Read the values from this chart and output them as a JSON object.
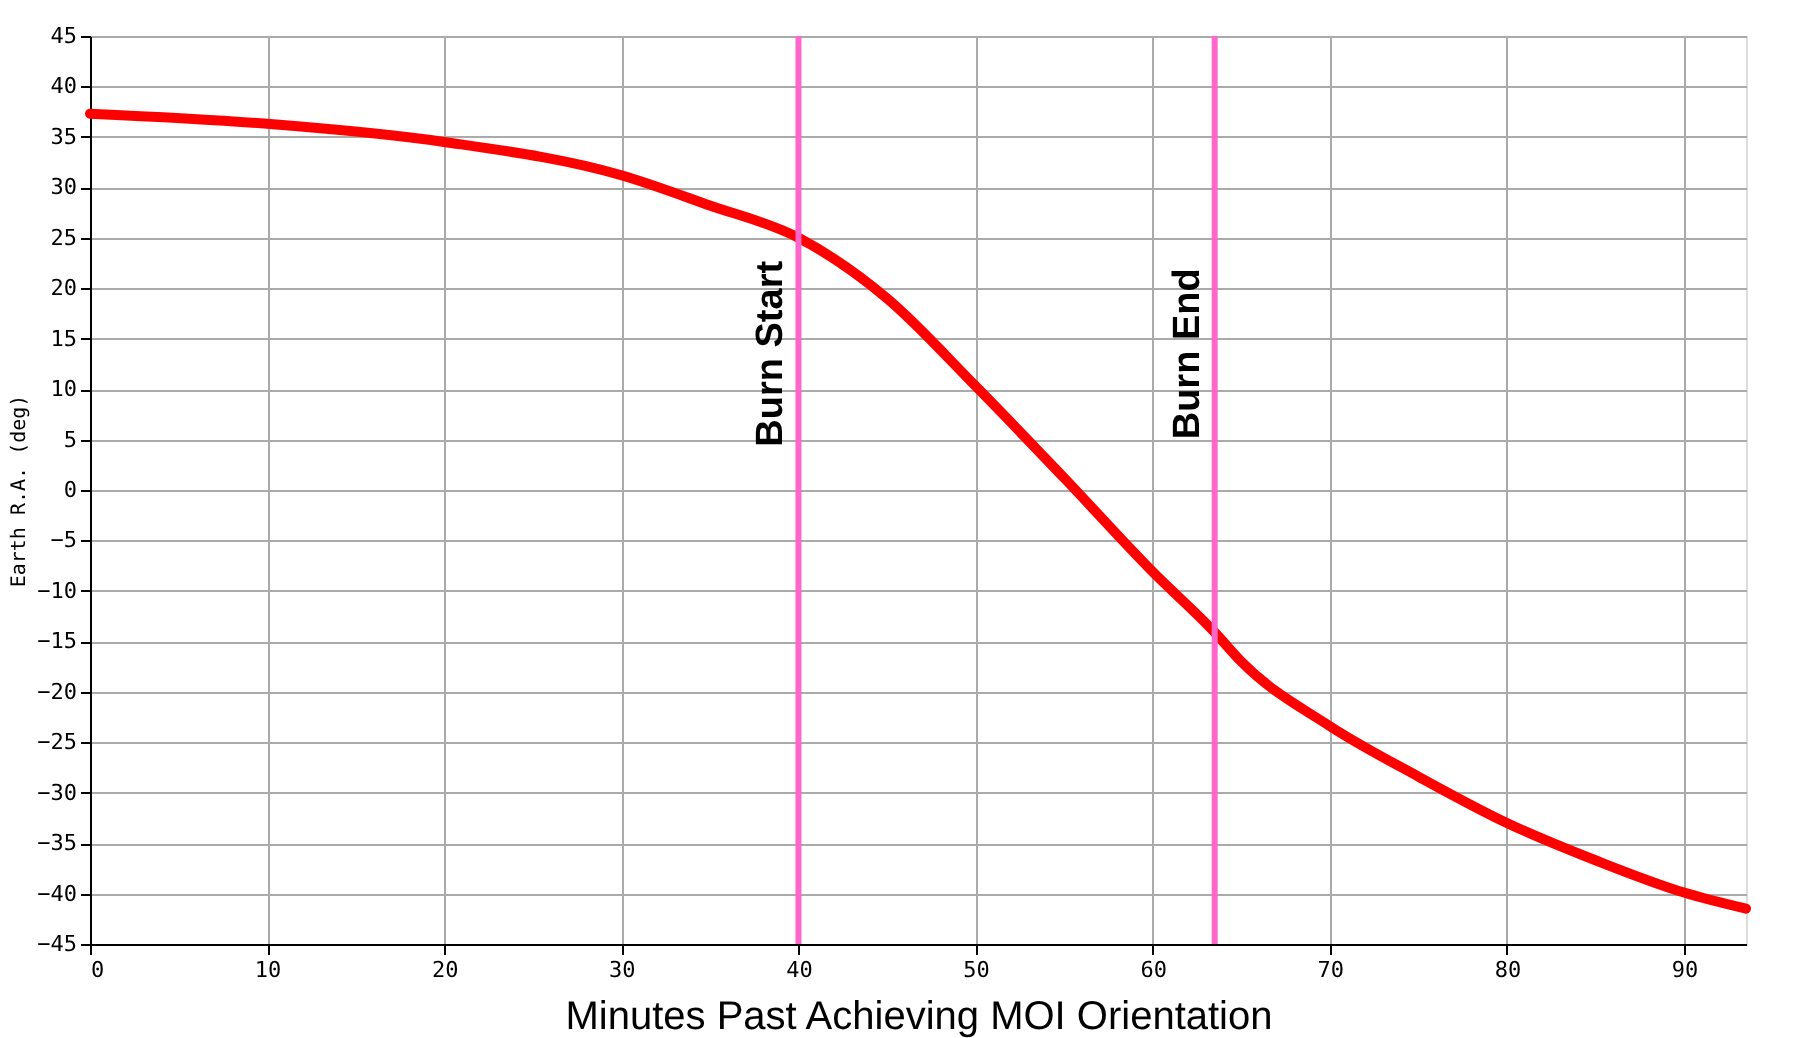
{
  "chart_data": {
    "type": "line",
    "xlabel": "Minutes Past Achieving MOI Orientation",
    "ylabel": "Earth R.A. (deg)",
    "x": [
      0,
      10,
      20,
      30,
      35,
      40,
      45,
      50,
      55,
      60,
      63.5,
      65,
      70,
      75,
      80,
      85,
      90,
      93.5
    ],
    "series": [
      {
        "color": "#ff0000",
        "values": [
          37.3,
          36.3,
          34.5,
          31.2,
          28.2,
          25,
          19,
          10.3,
          1.2,
          -8.1,
          -14.1,
          -17,
          -23.4,
          -28.4,
          -33,
          -36.7,
          -39.9,
          -41.5
        ]
      }
    ],
    "xlim": [
      0,
      93.5
    ],
    "xticks": [
      0,
      10,
      20,
      30,
      40,
      50,
      60,
      70,
      80,
      90
    ],
    "ylim": [
      -45,
      45
    ],
    "yticks": [
      -45,
      -40,
      -35,
      -30,
      -25,
      -20,
      -15,
      -10,
      -5,
      0,
      5,
      10,
      15,
      20,
      25,
      30,
      35,
      40,
      45
    ],
    "ref_lines": [
      {
        "axis": "x",
        "value": 40,
        "label": "Burn Start",
        "color": "#ff66cc"
      },
      {
        "axis": "x",
        "value": 63.5,
        "label": "Burn End",
        "color": "#ff66cc"
      }
    ],
    "grid": true,
    "marker": "none",
    "line_style": "solid"
  }
}
